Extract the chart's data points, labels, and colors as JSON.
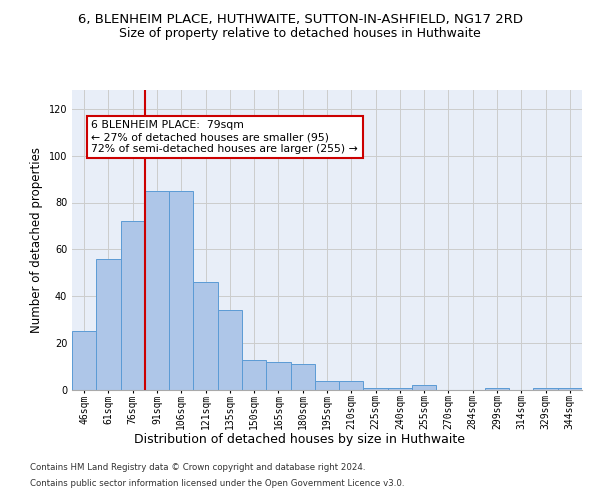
{
  "title": "6, BLENHEIM PLACE, HUTHWAITE, SUTTON-IN-ASHFIELD, NG17 2RD",
  "subtitle": "Size of property relative to detached houses in Huthwaite",
  "xlabel_bottom": "Distribution of detached houses by size in Huthwaite",
  "ylabel": "Number of detached properties",
  "categories": [
    "46sqm",
    "61sqm",
    "76sqm",
    "91sqm",
    "106sqm",
    "121sqm",
    "135sqm",
    "150sqm",
    "165sqm",
    "180sqm",
    "195sqm",
    "210sqm",
    "225sqm",
    "240sqm",
    "255sqm",
    "270sqm",
    "284sqm",
    "299sqm",
    "314sqm",
    "329sqm",
    "344sqm"
  ],
  "values": [
    25,
    56,
    72,
    85,
    85,
    46,
    34,
    13,
    12,
    11,
    4,
    4,
    1,
    1,
    2,
    0,
    0,
    1,
    0,
    1,
    1
  ],
  "bar_color": "#aec6e8",
  "bar_edge_color": "#5b9bd5",
  "vline_x_index": 2,
  "vline_color": "#cc0000",
  "annotation_text": "6 BLENHEIM PLACE:  79sqm\n← 27% of detached houses are smaller (95)\n72% of semi-detached houses are larger (255) →",
  "annotation_box_color": "#ffffff",
  "annotation_box_edge": "#cc0000",
  "ylim": [
    0,
    128
  ],
  "yticks": [
    0,
    20,
    40,
    60,
    80,
    100,
    120
  ],
  "grid_color": "#cccccc",
  "bg_color": "#e8eef8",
  "footer_line1": "Contains HM Land Registry data © Crown copyright and database right 2024.",
  "footer_line2": "Contains public sector information licensed under the Open Government Licence v3.0.",
  "title_fontsize": 9.5,
  "subtitle_fontsize": 9,
  "tick_fontsize": 7,
  "ylabel_fontsize": 8.5,
  "xlabel_fontsize": 9
}
